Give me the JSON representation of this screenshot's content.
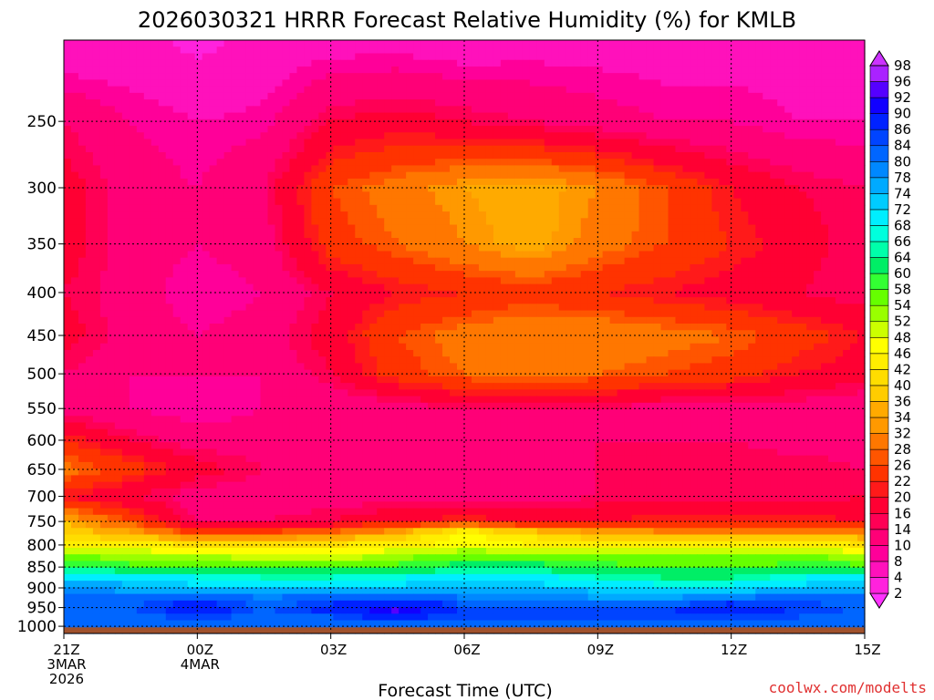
{
  "chart_data": {
    "type": "heatmap",
    "title": "2026030321 HRRR Forecast Relative Humidity (%) for KMLB",
    "xlabel": "Forecast Time (UTC)",
    "ylabel": "",
    "x_ticks": [
      {
        "hour": 0,
        "lines": [
          "21Z",
          "3MAR",
          "2026"
        ]
      },
      {
        "hour": 3,
        "lines": [
          "00Z",
          "4MAR"
        ]
      },
      {
        "hour": 6,
        "lines": [
          "03Z"
        ]
      },
      {
        "hour": 9,
        "lines": [
          "06Z"
        ]
      },
      {
        "hour": 12,
        "lines": [
          "09Z"
        ]
      },
      {
        "hour": 15,
        "lines": [
          "12Z"
        ]
      },
      {
        "hour": 18,
        "lines": [
          "15Z"
        ]
      }
    ],
    "xlim": [
      0,
      18
    ],
    "y_ticks": [
      250,
      300,
      350,
      400,
      450,
      500,
      550,
      600,
      650,
      700,
      750,
      800,
      850,
      900,
      950,
      1000
    ],
    "ylim": [
      200,
      1020
    ],
    "y_scale": "log",
    "y_inverted": true,
    "grid": true,
    "colorbar": {
      "labels": [
        2,
        4,
        8,
        10,
        14,
        16,
        20,
        22,
        26,
        28,
        32,
        34,
        36,
        40,
        42,
        46,
        48,
        52,
        54,
        58,
        60,
        64,
        66,
        68,
        72,
        74,
        78,
        80,
        84,
        86,
        90,
        92,
        96,
        98
      ],
      "colors": [
        "#ff33ff",
        "#ff22dd",
        "#ff11bb",
        "#ff0099",
        "#ff0077",
        "#ff0055",
        "#ff0033",
        "#ff1a1a",
        "#ff3300",
        "#ff5500",
        "#ff7700",
        "#ff9900",
        "#ffaa00",
        "#ffcc00",
        "#ffdd00",
        "#ffee00",
        "#ffff00",
        "#ccff00",
        "#99ff00",
        "#66ff00",
        "#33ff33",
        "#00ee66",
        "#00ffaa",
        "#00ffdd",
        "#00eeff",
        "#00ccff",
        "#00aaff",
        "#0088ff",
        "#0066ff",
        "#0044ff",
        "#0022ff",
        "#1100ff",
        "#5500ff",
        "#aa22ff",
        "#cc33ff"
      ]
    },
    "hours": [
      0,
      1.5,
      3,
      4.5,
      6,
      7.5,
      9,
      10.5,
      12,
      13.5,
      15,
      16.5,
      18
    ],
    "levels": [
      200,
      250,
      300,
      350,
      400,
      450,
      500,
      550,
      600,
      650,
      700,
      750,
      775,
      800,
      825,
      850,
      875,
      900,
      925,
      950,
      975,
      1000,
      1020
    ],
    "rh": [
      [
        4,
        5,
        3,
        5,
        6,
        6,
        5,
        6,
        6,
        6,
        6,
        6,
        6
      ],
      [
        14,
        10,
        8,
        9,
        16,
        18,
        16,
        14,
        12,
        10,
        10,
        8,
        8
      ],
      [
        18,
        12,
        10,
        14,
        26,
        30,
        34,
        36,
        32,
        26,
        20,
        16,
        14
      ],
      [
        18,
        12,
        10,
        12,
        24,
        28,
        32,
        36,
        30,
        26,
        22,
        18,
        14
      ],
      [
        16,
        12,
        8,
        10,
        16,
        20,
        22,
        24,
        22,
        20,
        18,
        16,
        14
      ],
      [
        18,
        12,
        10,
        12,
        18,
        26,
        30,
        32,
        32,
        30,
        28,
        24,
        20
      ],
      [
        14,
        10,
        10,
        10,
        16,
        24,
        28,
        30,
        28,
        26,
        24,
        20,
        18
      ],
      [
        12,
        10,
        8,
        10,
        10,
        12,
        14,
        14,
        14,
        12,
        12,
        12,
        10
      ],
      [
        22,
        16,
        12,
        12,
        12,
        12,
        12,
        12,
        14,
        14,
        14,
        12,
        12
      ],
      [
        30,
        24,
        18,
        14,
        12,
        12,
        12,
        14,
        14,
        16,
        16,
        16,
        14
      ],
      [
        20,
        16,
        12,
        12,
        12,
        12,
        12,
        12,
        14,
        14,
        14,
        14,
        16
      ],
      [
        36,
        26,
        14,
        14,
        16,
        20,
        22,
        20,
        20,
        22,
        22,
        22,
        20
      ],
      [
        38,
        36,
        26,
        28,
        30,
        36,
        48,
        40,
        36,
        34,
        34,
        34,
        32
      ],
      [
        46,
        44,
        42,
        42,
        42,
        44,
        48,
        46,
        44,
        44,
        44,
        44,
        42
      ],
      [
        54,
        52,
        52,
        50,
        50,
        52,
        56,
        56,
        54,
        54,
        54,
        54,
        52
      ],
      [
        62,
        60,
        60,
        58,
        58,
        60,
        62,
        62,
        60,
        58,
        58,
        60,
        60
      ],
      [
        72,
        70,
        68,
        66,
        66,
        68,
        70,
        70,
        66,
        64,
        64,
        68,
        70
      ],
      [
        78,
        76,
        74,
        72,
        72,
        74,
        76,
        74,
        72,
        70,
        70,
        74,
        76
      ],
      [
        82,
        82,
        84,
        80,
        82,
        84,
        80,
        80,
        78,
        78,
        80,
        82,
        82
      ],
      [
        82,
        84,
        90,
        84,
        88,
        94,
        86,
        84,
        84,
        86,
        90,
        86,
        84
      ],
      [
        80,
        82,
        86,
        82,
        84,
        88,
        84,
        86,
        84,
        84,
        86,
        84,
        82
      ],
      [
        80,
        80,
        82,
        80,
        82,
        82,
        82,
        82,
        82,
        82,
        82,
        80,
        80
      ],
      [
        80,
        80,
        80,
        80,
        80,
        80,
        80,
        80,
        80,
        80,
        80,
        80,
        80
      ]
    ],
    "surface_color": "#a0522d",
    "credit": "coolwx.com/modelts",
    "credit_color": "#e03030"
  }
}
